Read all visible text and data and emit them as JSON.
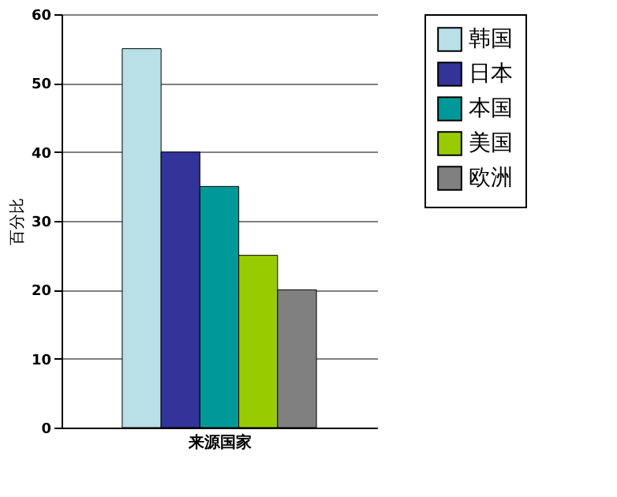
{
  "chart_data": {
    "type": "bar",
    "xlabel": "来源国家",
    "ylabel": "百分比",
    "categories": [
      null
    ],
    "series": [
      {
        "name": "韩国",
        "color": "#b8e0e6",
        "values": [
          55
        ]
      },
      {
        "name": "日本",
        "color": "#333399",
        "values": [
          40
        ]
      },
      {
        "name": "本国",
        "color": "#009999",
        "values": [
          35
        ]
      },
      {
        "name": "美国",
        "color": "#99cc00",
        "values": [
          25
        ]
      },
      {
        "name": "欧洲",
        "color": "#808080",
        "values": [
          20
        ]
      }
    ],
    "ylim": [
      0,
      60
    ],
    "yticks": [
      0,
      10,
      20,
      30,
      40,
      50,
      60
    ],
    "grid": "y",
    "legend": "right",
    "tick_labels": "y"
  }
}
